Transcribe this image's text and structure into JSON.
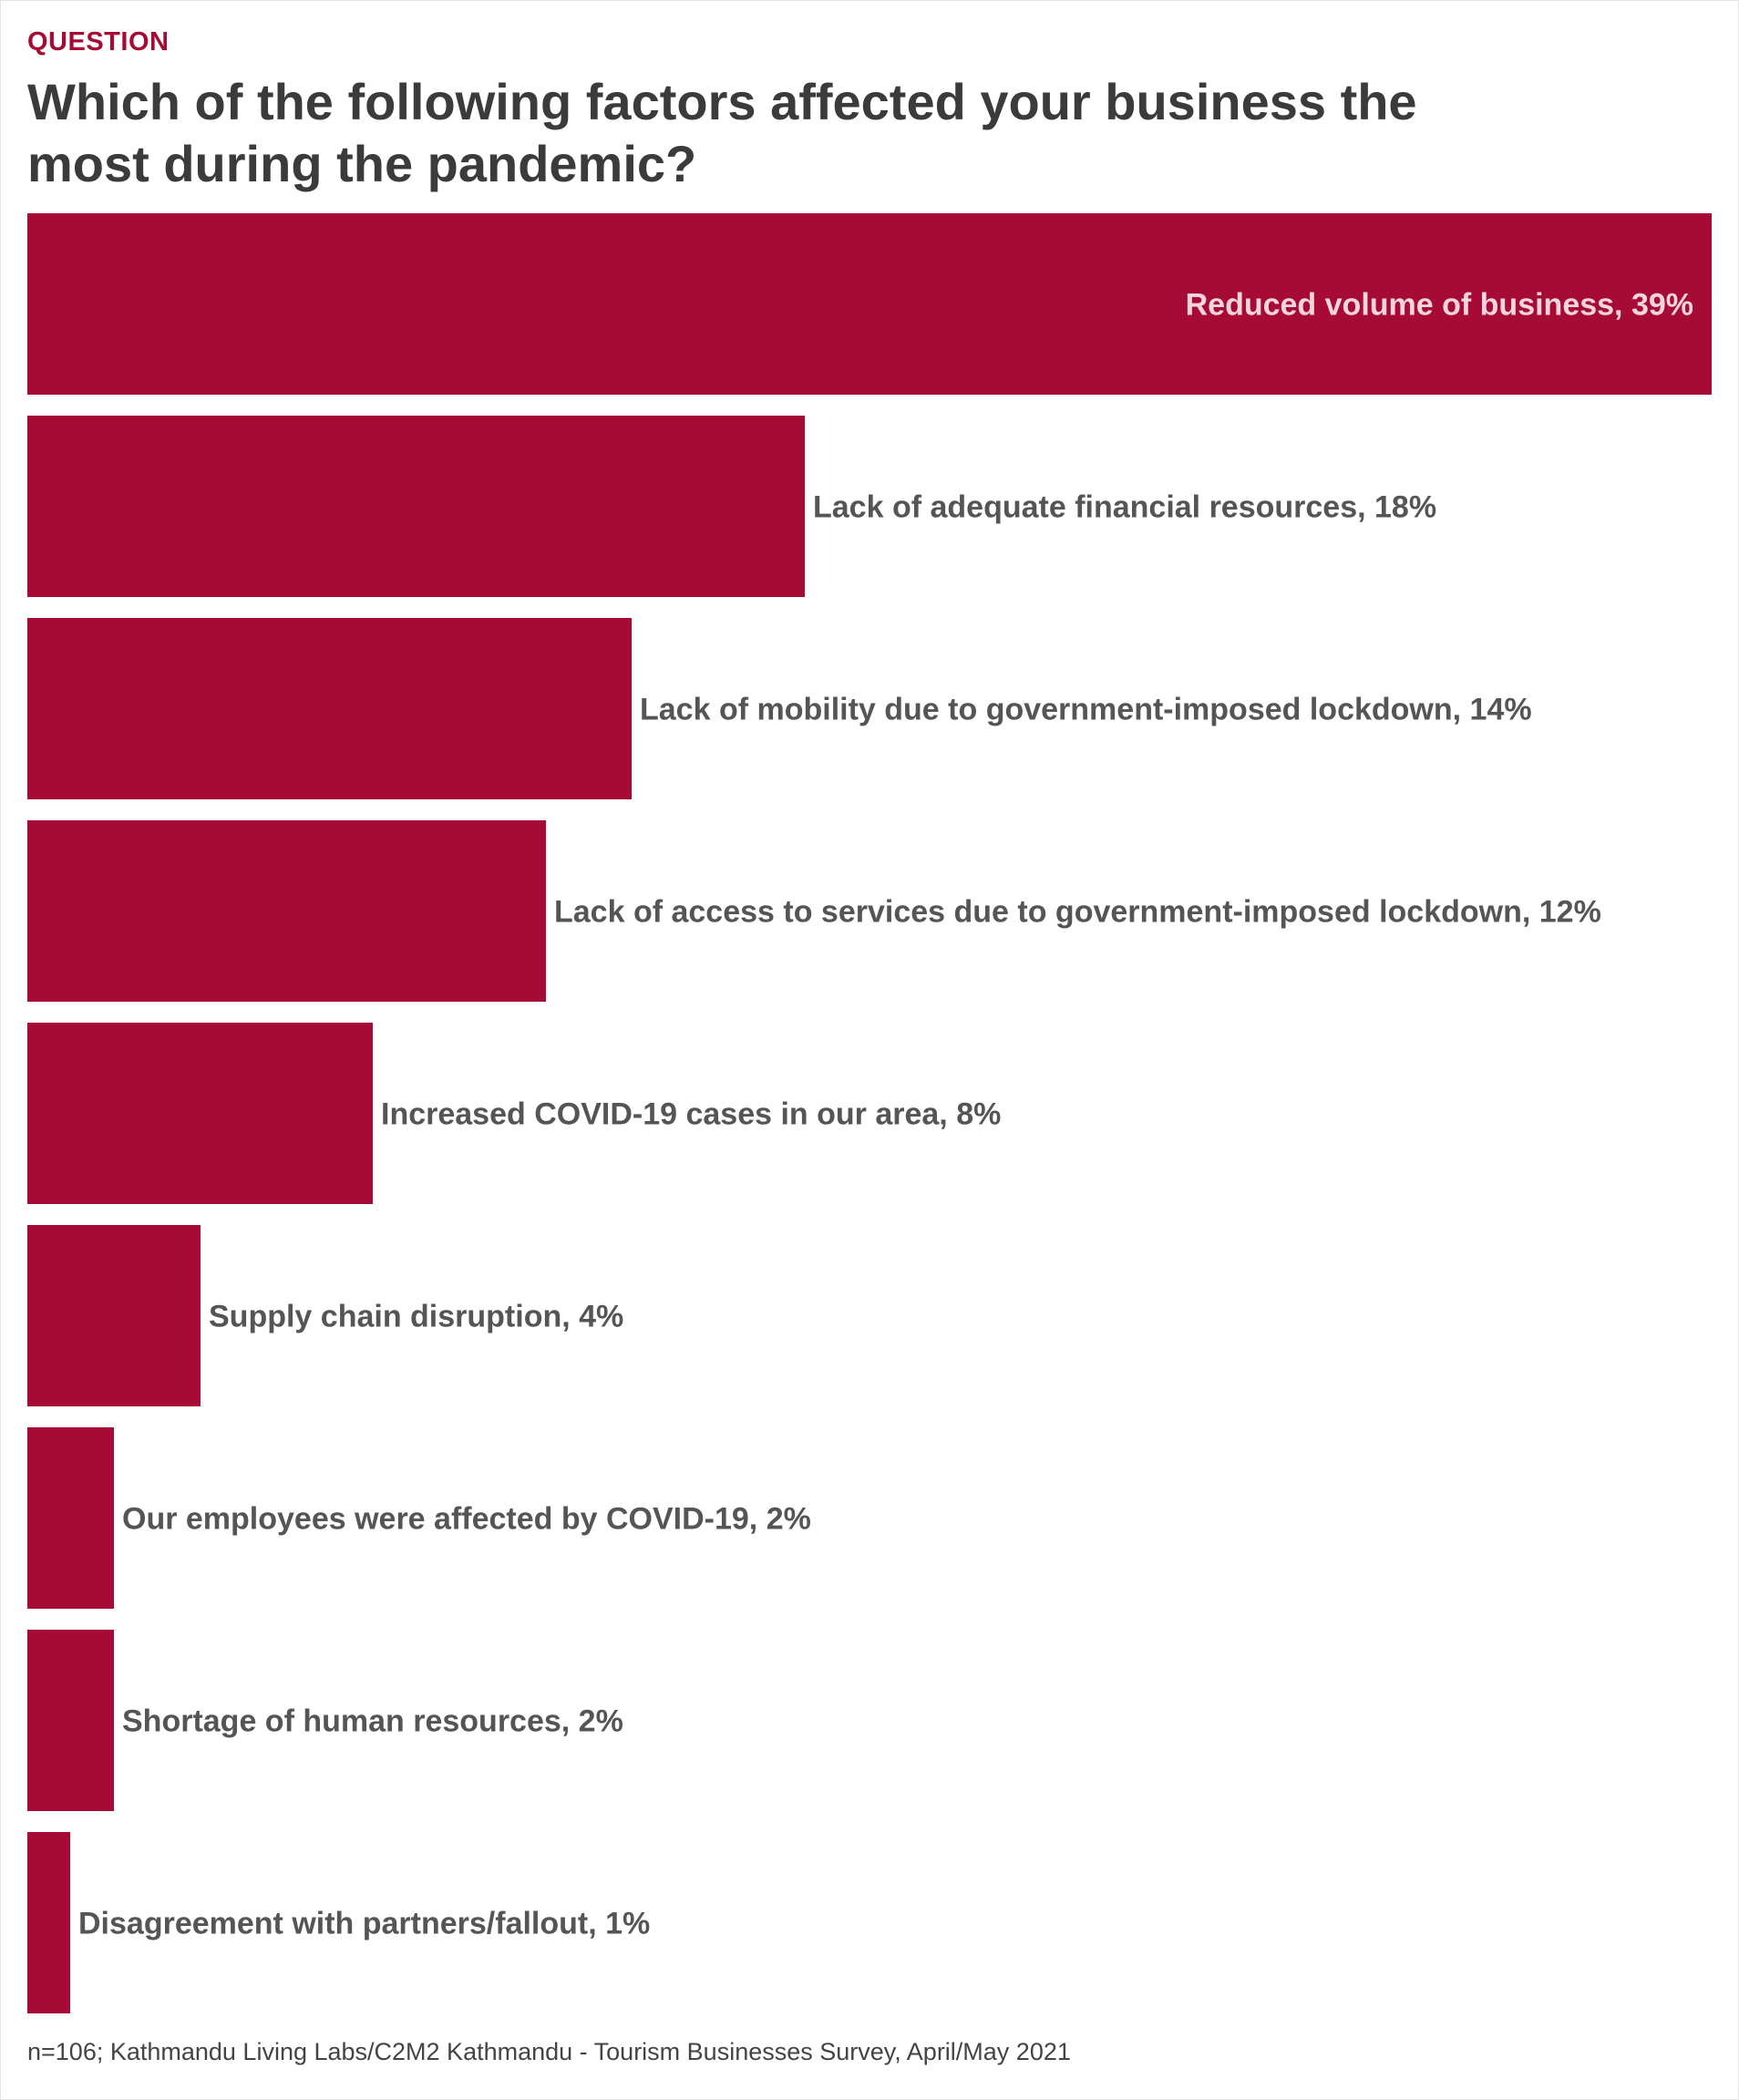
{
  "kicker": "QUESTION",
  "title": "Which of the following factors affected your business the most during the pandemic?",
  "footnote": "n=106; Kathmandu Living Labs/C2M2 Kathmandu - Tourism Businesses Survey, April/May 2021",
  "colors": {
    "bar": "#a50b35",
    "label_outside": "#555555",
    "label_inside": "#f6d5dc",
    "title": "#3b3b3b",
    "kicker": "#a50b35"
  },
  "chart_data": {
    "type": "bar",
    "orientation": "horizontal",
    "categories": [
      "Reduced volume of business",
      "Lack of adequate financial resources",
      "Lack of mobility due to government-imposed lockdown",
      "Lack of access to services due to government-imposed lockdown",
      "Increased COVID-19 cases in our area",
      "Supply chain disruption",
      "Our employees were affected by COVID-19",
      "Shortage of human resources",
      "Disagreement with partners/fallout"
    ],
    "values": [
      39,
      18,
      14,
      12,
      8,
      4,
      2,
      2,
      1
    ],
    "labels": [
      "Reduced volume of business, 39%",
      "Lack of adequate financial resources, 18%",
      "Lack of mobility due to government-imposed lockdown, 14%",
      "Lack of access to services due to government-imposed lockdown, 12%",
      "Increased COVID-19 cases in our area, 8%",
      "Supply chain disruption, 4%",
      "Our employees were affected by COVID-19, 2%",
      "Shortage of human resources, 2%",
      "Disagreement with partners/fallout, 1%"
    ],
    "unit": "%",
    "xlim": [
      0,
      39
    ],
    "grid": false,
    "legend": false
  }
}
